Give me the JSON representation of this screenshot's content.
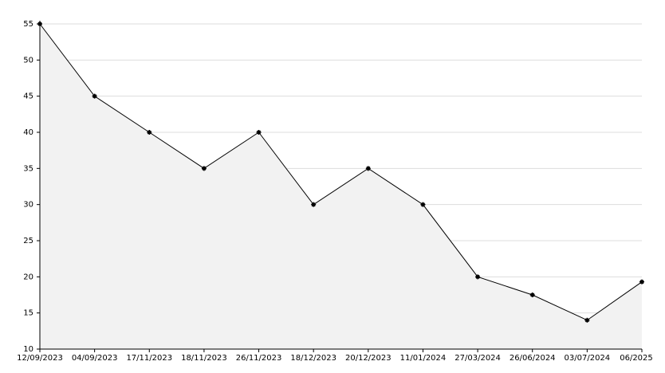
{
  "chart_data": {
    "type": "area",
    "categories": [
      "12/09/2023",
      "04/09/2023",
      "17/11/2023",
      "18/11/2023",
      "26/11/2023",
      "18/12/2023",
      "20/12/2023",
      "11/01/2024",
      "27/03/2024",
      "26/06/2024",
      "03/07/2024",
      "06/2025"
    ],
    "values": [
      55,
      45,
      40,
      35,
      40,
      30,
      35,
      30,
      20,
      17.5,
      14,
      19.3
    ],
    "color": "#000000",
    "fill": "#f2f2f2",
    "ylim": [
      10,
      55
    ],
    "yticks": [
      10,
      15,
      20,
      25,
      30,
      35,
      40,
      45,
      50,
      55
    ],
    "grid": true
  }
}
